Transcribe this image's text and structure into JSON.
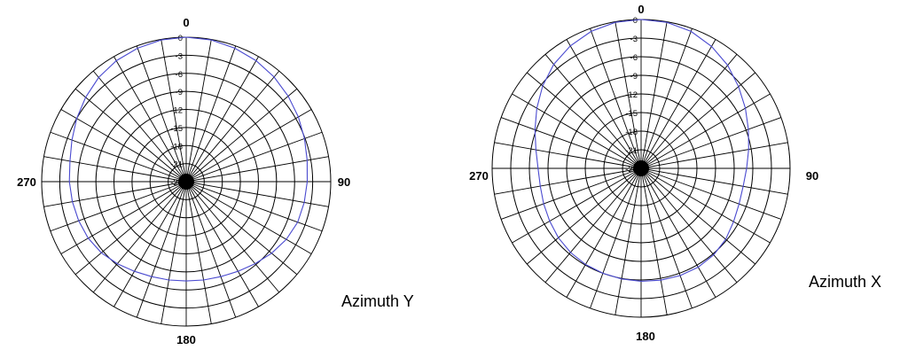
{
  "chart_data": [
    {
      "type": "polar",
      "caption": "Azimuth Y",
      "angle_labels": [
        "0",
        "90",
        "180",
        "270"
      ],
      "radial_labels": [
        "0",
        "-3",
        "-6",
        "-9",
        "-12",
        "-15",
        "-18",
        "-21",
        "-24"
      ],
      "radial_range_db": [
        -24,
        0
      ],
      "angular_grid_step_deg": 10,
      "grid": true,
      "series": [
        {
          "angles_deg": [
            0,
            10,
            20,
            30,
            40,
            50,
            60,
            70,
            80,
            90,
            100,
            110,
            120,
            130,
            140,
            150,
            160,
            170,
            180,
            190,
            200,
            210,
            220,
            230,
            240,
            250,
            260,
            270,
            280,
            290,
            300,
            310,
            320,
            330,
            340,
            350
          ],
          "values_db": [
            0,
            -0.1,
            -0.4,
            -0.8,
            -1.3,
            -1.9,
            -2.5,
            -3.1,
            -3.6,
            -3.9,
            -4.1,
            -4.3,
            -4.8,
            -5.5,
            -6.2,
            -6.8,
            -7.2,
            -7.4,
            -7.5,
            -7.4,
            -7.2,
            -6.8,
            -6.2,
            -5.6,
            -5.2,
            -5.0,
            -4.8,
            -4.6,
            -4.4,
            -3.8,
            -3.0,
            -2.2,
            -1.4,
            -0.8,
            -0.4,
            -0.1
          ]
        }
      ]
    },
    {
      "type": "polar",
      "caption": "Azimuth X",
      "angle_labels": [
        "0",
        "90",
        "180",
        "270"
      ],
      "radial_labels": [
        "0",
        "-3",
        "-6",
        "-9",
        "-12",
        "-15",
        "-18",
        "-21",
        "-24"
      ],
      "radial_range_db": [
        -24,
        0
      ],
      "angular_grid_step_deg": 10,
      "grid": true,
      "series": [
        {
          "angles_deg": [
            0,
            10,
            20,
            30,
            40,
            50,
            60,
            70,
            80,
            90,
            100,
            110,
            120,
            130,
            140,
            150,
            160,
            170,
            180,
            190,
            200,
            210,
            220,
            230,
            240,
            250,
            260,
            270,
            280,
            290,
            300,
            310,
            320,
            330,
            340,
            350
          ],
          "values_db": [
            0,
            -0.1,
            -0.5,
            -1.3,
            -2.3,
            -3.5,
            -4.6,
            -5.6,
            -6.4,
            -7.0,
            -7.3,
            -7.2,
            -6.8,
            -6.2,
            -5.8,
            -5.6,
            -5.6,
            -5.7,
            -5.8,
            -5.9,
            -6.0,
            -6.1,
            -6.3,
            -6.6,
            -7.0,
            -7.3,
            -7.5,
            -7.4,
            -6.8,
            -5.8,
            -4.6,
            -3.3,
            -2.1,
            -1.2,
            -0.5,
            -0.1
          ]
        }
      ]
    }
  ]
}
